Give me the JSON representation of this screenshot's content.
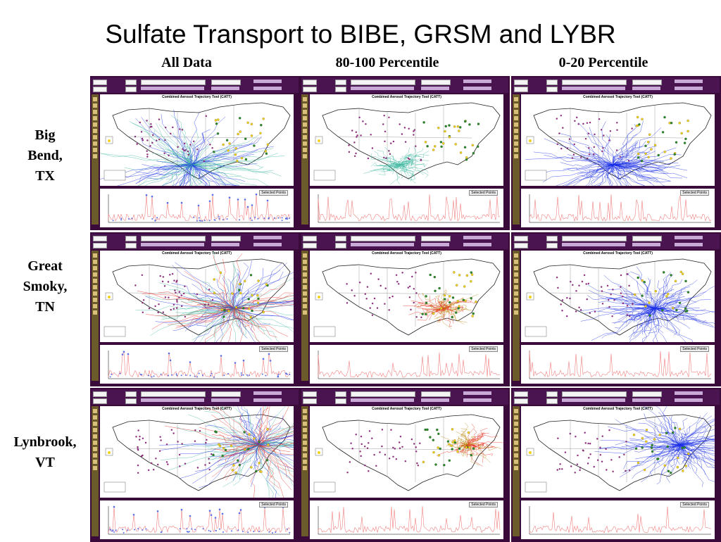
{
  "slide": {
    "title": "Sulfate Transport to BIBE, GRSM and LYBR"
  },
  "columns": [
    {
      "label": "All Data",
      "style": "all"
    },
    {
      "label": "80-100 Percentile",
      "style": "high"
    },
    {
      "label": "0-20 Percentile",
      "style": "low"
    }
  ],
  "rows": [
    {
      "label_lines": [
        "Big",
        "Bend,",
        "TX"
      ],
      "site": "bibe"
    },
    {
      "label_lines": [
        "Great",
        "Smoky,",
        "TN"
      ],
      "site": "grsm"
    },
    {
      "label_lines": [
        "Lynbrook,",
        "VT"
      ],
      "site": "lybr"
    }
  ],
  "tool": {
    "map_title": "Combined Aerosol Trajectory Tool (CATT)",
    "selected_points_label": "Selected Points"
  },
  "colors": {
    "panel_frame": "#3a0a3a",
    "trajectory_blue": "#1a2ee6",
    "trajectory_green": "#3fb8a0",
    "trajectory_red": "#e8241a",
    "site_magenta": "#a0208a",
    "site_yellow": "#f2d21a",
    "site_green": "#2a8a2a",
    "timeseries_red": "#f08080",
    "timeseries_blue": "#5a6ee8"
  }
}
